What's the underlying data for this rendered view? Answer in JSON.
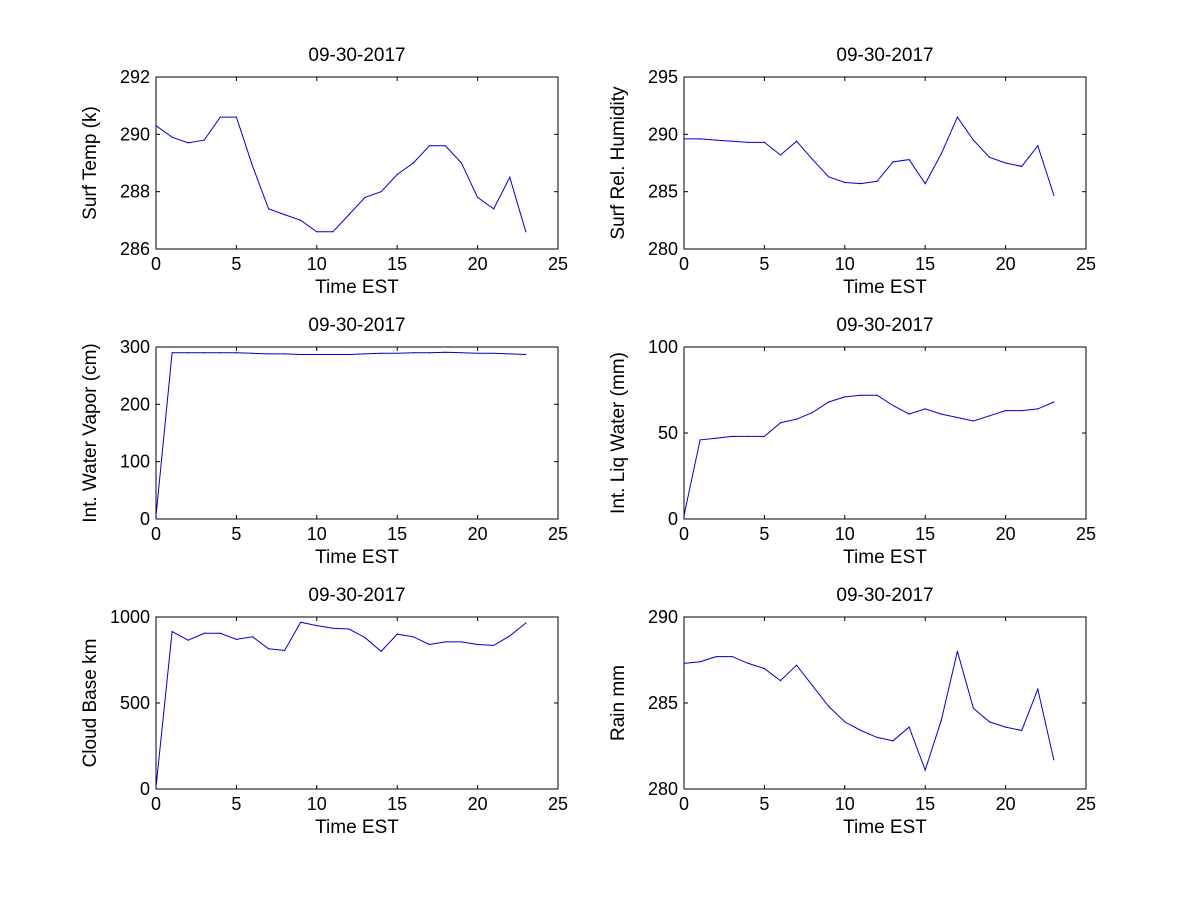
{
  "figure": {
    "background": "#ffffff",
    "line_color": "#0000cc",
    "axis_color": "#000000"
  },
  "chart_data": [
    {
      "type": "line",
      "title": "09-30-2017",
      "xlabel": "Time EST",
      "ylabel": "Surf Temp (k)",
      "xlim": [
        0,
        25
      ],
      "ylim": [
        286,
        292
      ],
      "xticks": [
        0,
        5,
        10,
        15,
        20,
        25
      ],
      "yticks": [
        286,
        288,
        290,
        292
      ],
      "x": [
        0,
        1,
        2,
        3,
        4,
        5,
        6,
        7,
        8,
        9,
        10,
        11,
        12,
        13,
        14,
        15,
        16,
        17,
        18,
        19,
        20,
        21,
        22,
        23
      ],
      "y": [
        290.3,
        289.9,
        289.7,
        289.8,
        290.6,
        290.6,
        288.9,
        287.4,
        287.2,
        287.0,
        286.6,
        286.6,
        287.2,
        287.8,
        288.0,
        288.6,
        289.0,
        289.6,
        289.6,
        289.0,
        287.8,
        287.4,
        288.5,
        286.6
      ]
    },
    {
      "type": "line",
      "title": "09-30-2017",
      "xlabel": "Time EST",
      "ylabel": "Surf Rel. Humidity",
      "xlim": [
        0,
        25
      ],
      "ylim": [
        280,
        295
      ],
      "xticks": [
        0,
        5,
        10,
        15,
        20,
        25
      ],
      "yticks": [
        280,
        285,
        290,
        295
      ],
      "x": [
        0,
        1,
        2,
        3,
        4,
        5,
        6,
        7,
        8,
        9,
        10,
        11,
        12,
        13,
        14,
        15,
        16,
        17,
        18,
        19,
        20,
        21,
        22,
        23
      ],
      "y": [
        289.6,
        289.6,
        289.5,
        289.4,
        289.3,
        289.3,
        288.2,
        289.4,
        287.8,
        286.3,
        285.8,
        285.7,
        285.9,
        287.6,
        287.8,
        285.7,
        288.3,
        291.5,
        289.5,
        288.0,
        287.5,
        287.2,
        289.0,
        284.7
      ]
    },
    {
      "type": "line",
      "title": "09-30-2017",
      "xlabel": "Time EST",
      "ylabel": "Int. Water Vapor (cm)",
      "xlim": [
        0,
        25
      ],
      "ylim": [
        0,
        300
      ],
      "xticks": [
        0,
        5,
        10,
        15,
        20,
        25
      ],
      "yticks": [
        0,
        100,
        200,
        300
      ],
      "x": [
        0,
        1,
        2,
        3,
        4,
        5,
        6,
        7,
        8,
        9,
        10,
        11,
        12,
        13,
        14,
        15,
        16,
        17,
        18,
        19,
        20,
        21,
        22,
        23
      ],
      "y": [
        5,
        290,
        290,
        290,
        290,
        290,
        289,
        288,
        288,
        287,
        287,
        287,
        287,
        288,
        289,
        289,
        290,
        290,
        291,
        290,
        289,
        289,
        288,
        287
      ]
    },
    {
      "type": "line",
      "title": "09-30-2017",
      "xlabel": "Time EST",
      "ylabel": "Int. Liq Water (mm)",
      "xlim": [
        0,
        25
      ],
      "ylim": [
        0,
        100
      ],
      "xticks": [
        0,
        5,
        10,
        15,
        20,
        25
      ],
      "yticks": [
        0,
        50,
        100
      ],
      "x": [
        0,
        1,
        2,
        3,
        4,
        5,
        6,
        7,
        8,
        9,
        10,
        11,
        12,
        13,
        14,
        15,
        16,
        17,
        18,
        19,
        20,
        21,
        22,
        23
      ],
      "y": [
        2,
        46,
        47,
        48,
        48,
        48,
        56,
        58,
        62,
        68,
        71,
        72,
        72,
        66,
        61,
        64,
        61,
        59,
        57,
        60,
        63,
        63,
        64,
        68
      ]
    },
    {
      "type": "line",
      "title": "09-30-2017",
      "xlabel": "Time EST",
      "ylabel": "Cloud Base km",
      "xlim": [
        0,
        25
      ],
      "ylim": [
        0,
        1000
      ],
      "xticks": [
        0,
        5,
        10,
        15,
        20,
        25
      ],
      "yticks": [
        0,
        500,
        1000
      ],
      "x": [
        0,
        1,
        2,
        3,
        4,
        5,
        6,
        7,
        8,
        9,
        10,
        11,
        12,
        13,
        14,
        15,
        16,
        17,
        18,
        19,
        20,
        21,
        22,
        23
      ],
      "y": [
        10,
        915,
        865,
        905,
        905,
        870,
        885,
        815,
        805,
        970,
        950,
        935,
        930,
        880,
        800,
        900,
        885,
        840,
        855,
        855,
        840,
        835,
        890,
        965
      ]
    },
    {
      "type": "line",
      "title": "09-30-2017",
      "xlabel": "Time EST",
      "ylabel": "Rain mm",
      "xlim": [
        0,
        25
      ],
      "ylim": [
        280,
        290
      ],
      "xticks": [
        0,
        5,
        10,
        15,
        20,
        25
      ],
      "yticks": [
        280,
        285,
        290
      ],
      "x": [
        0,
        1,
        2,
        3,
        4,
        5,
        6,
        7,
        8,
        9,
        10,
        11,
        12,
        13,
        14,
        15,
        16,
        17,
        18,
        19,
        20,
        21,
        22,
        23
      ],
      "y": [
        287.3,
        287.4,
        287.7,
        287.7,
        287.3,
        287.0,
        286.3,
        287.2,
        286.0,
        284.8,
        283.9,
        283.4,
        283.0,
        282.8,
        283.6,
        281.1,
        284.0,
        288.0,
        284.7,
        283.9,
        283.6,
        283.4,
        285.8,
        281.7
      ]
    }
  ]
}
